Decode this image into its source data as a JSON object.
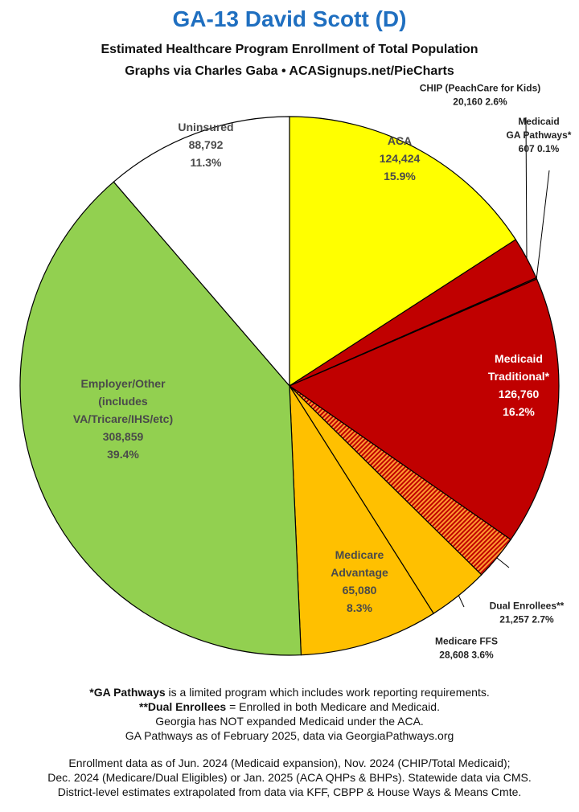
{
  "chart_data": {
    "type": "pie",
    "title": "GA-13 David Scott (D)",
    "subtitle_lines": [
      "Estimated Healthcare Program Enrollment of Total Population",
      "Graphs via Charles Gaba  •  ACASignups.net/PieCharts"
    ],
    "slices": [
      {
        "label_lines": [
          "ACA"
        ],
        "value": 124424,
        "value_text": "124,424",
        "percent_text": "15.9%",
        "color": "#ffff00",
        "text_color": "#4a4a4a",
        "callout": false
      },
      {
        "label_lines": [
          "CHIP (PeachCare for Kids)"
        ],
        "value": 20160,
        "value_text": "20,160",
        "percent_text": "2.6%",
        "color": "#c00000",
        "text_color": "#222222",
        "callout": true
      },
      {
        "label_lines": [
          "Medicaid",
          "GA Pathways*"
        ],
        "value": 607,
        "value_text": "607",
        "percent_text": "0.1%",
        "color": "#c00000",
        "text_color": "#222222",
        "callout": true
      },
      {
        "label_lines": [
          "Medicaid",
          "Traditional*"
        ],
        "value": 126760,
        "value_text": "126,760",
        "percent_text": "16.2%",
        "color": "#c00000",
        "text_color": "#ffffff",
        "callout": false
      },
      {
        "label_lines": [
          "Dual Enrollees**"
        ],
        "value": 21257,
        "value_text": "21,257",
        "percent_text": "2.7%",
        "color": "#e07000",
        "pattern": "stripes",
        "text_color": "#222222",
        "callout": true
      },
      {
        "label_lines": [
          "Medicare FFS"
        ],
        "value": 28608,
        "value_text": "28,608",
        "percent_text": "3.6%",
        "color": "#ffc000",
        "text_color": "#222222",
        "callout": true
      },
      {
        "label_lines": [
          "Medicare",
          "Advantage"
        ],
        "value": 65080,
        "value_text": "65,080",
        "percent_text": "8.3%",
        "color": "#ffc000",
        "text_color": "#4a4a4a",
        "callout": false
      },
      {
        "label_lines": [
          "Employer/Other",
          "(includes",
          "VA/Tricare/IHS/etc)"
        ],
        "value": 308859,
        "value_text": "308,859",
        "percent_text": "39.4%",
        "color": "#92d050",
        "text_color": "#4a4a4a",
        "callout": false
      },
      {
        "label_lines": [
          "Uninsured"
        ],
        "value": 88792,
        "value_text": "88,792",
        "percent_text": "11.3%",
        "color": "#ffffff",
        "text_color": "#4a4a4a",
        "callout": false
      }
    ]
  },
  "notes_top": [
    {
      "bold": "*GA Pathways",
      "rest": " is a limited program which includes work reporting requirements."
    },
    {
      "bold": "**Dual Enrollees",
      "rest": " = Enrolled in both Medicare and Medicaid."
    },
    {
      "bold": "",
      "rest": "Georgia has NOT expanded Medicaid under the ACA."
    },
    {
      "bold": "",
      "rest": "GA Pathways as of February 2025, data via GeorgiaPathways.org"
    }
  ],
  "notes_bottom": [
    "Enrollment data as of Jun. 2024 (Medicaid expansion), Nov. 2024 (CHIP/Total Medicaid);",
    "Dec. 2024 (Medicare/Dual Eligibles) or Jan. 2025 (ACA QHPs & BHPs). Statewide data via CMS.",
    "District-level estimates extrapolated from data via KFF, CBPP & House Ways & Means Cmte."
  ]
}
